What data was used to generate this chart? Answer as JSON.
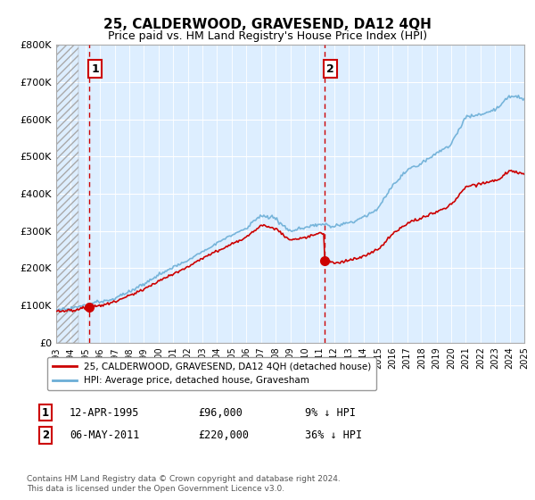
{
  "title": "25, CALDERWOOD, GRAVESEND, DA12 4QH",
  "subtitle": "Price paid vs. HM Land Registry's House Price Index (HPI)",
  "legend_line1": "25, CALDERWOOD, GRAVESEND, DA12 4QH (detached house)",
  "legend_line2": "HPI: Average price, detached house, Gravesham",
  "annotation1_label": "1",
  "annotation1_date": "12-APR-1995",
  "annotation1_price": "£96,000",
  "annotation1_hpi": "9% ↓ HPI",
  "annotation2_label": "2",
  "annotation2_date": "06-MAY-2011",
  "annotation2_price": "£220,000",
  "annotation2_hpi": "36% ↓ HPI",
  "footnote": "Contains HM Land Registry data © Crown copyright and database right 2024.\nThis data is licensed under the Open Government Licence v3.0.",
  "hpi_color": "#6baed6",
  "price_color": "#cc0000",
  "vline_color": "#cc0000",
  "marker_color": "#cc0000",
  "bg_color": "#ddeeff",
  "ylim": [
    0,
    800000
  ],
  "yticks": [
    0,
    100000,
    200000,
    300000,
    400000,
    500000,
    600000,
    700000,
    800000
  ],
  "ytick_labels": [
    "£0",
    "£100K",
    "£200K",
    "£300K",
    "£400K",
    "£500K",
    "£600K",
    "£700K",
    "£800K"
  ],
  "sale1_x": 1995.28,
  "sale1_y": 96000,
  "sale2_x": 2011.35,
  "sale2_y": 220000,
  "xmin": 1993,
  "xmax": 2025
}
